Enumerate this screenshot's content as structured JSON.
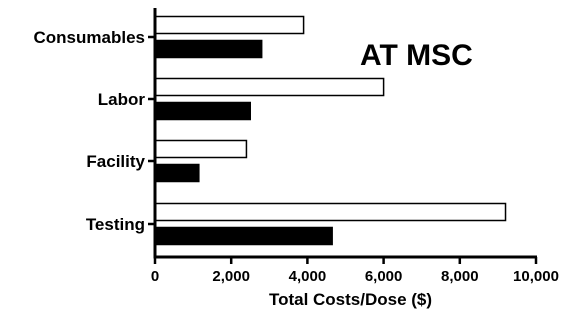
{
  "chart_data": {
    "type": "bar",
    "orientation": "horizontal",
    "title": "",
    "annotation": "AT MSC",
    "categories": [
      "Consumables",
      "Labor",
      "Facility",
      "Testing"
    ],
    "series": [
      {
        "fill": "#ffffff",
        "stroke": "#000000",
        "values": [
          3900,
          6000,
          2400,
          9200
        ]
      },
      {
        "fill": "#000000",
        "stroke": "#000000",
        "values": [
          2800,
          2500,
          1150,
          4650
        ]
      }
    ],
    "xlabel": "Total Costs/Dose ($)",
    "ylabel": "",
    "xlim": [
      0,
      10000
    ],
    "xticks": [
      0,
      2000,
      4000,
      6000,
      8000,
      10000
    ],
    "xtick_labels": [
      "0",
      "2,000",
      "4,000",
      "6,000",
      "8,000",
      "10,000"
    ],
    "grid": false,
    "legend": "none"
  }
}
